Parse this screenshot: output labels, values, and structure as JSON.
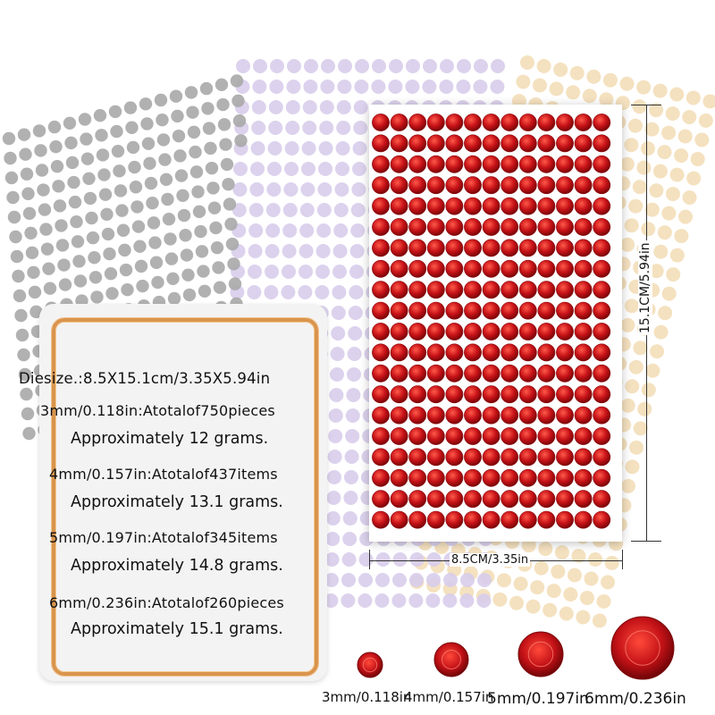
{
  "info_panel": {
    "die_size": "Diesize.:8.5X15.1cm/3.35X5.94in",
    "lines": [
      {
        "spec": "3mm/0.118in:Atotalof750pieces",
        "weight": "Approximately 12 grams."
      },
      {
        "spec": "4mm/0.157in:Atotalof437items",
        "weight": "Approximately 13.1 grams."
      },
      {
        "spec": "5mm/0.197in:Atotalof345items",
        "weight": "Approximately 14.8 grams."
      },
      {
        "spec": "6mm/0.236in:Atotalof260pieces",
        "weight": "Approximately 15.1 grams."
      }
    ]
  },
  "sheet": {
    "height_label": "15.1CM/5.94in",
    "width_label": "8.5CM/3.35in",
    "gem_color": "#c0141a"
  },
  "sizes": [
    {
      "label": "3mm/0.118in"
    },
    {
      "label": "4mm/0.157in"
    },
    {
      "label": "5mm/0.197in"
    },
    {
      "label": "6mm/0.236in"
    }
  ],
  "colors": {
    "gray_sheet": "#a9a9a9",
    "lavender_sheet": "#d8cdeb",
    "champagne_sheet": "#f2dcb4",
    "panel_border": "#d9944d",
    "red": "#c0141a"
  }
}
